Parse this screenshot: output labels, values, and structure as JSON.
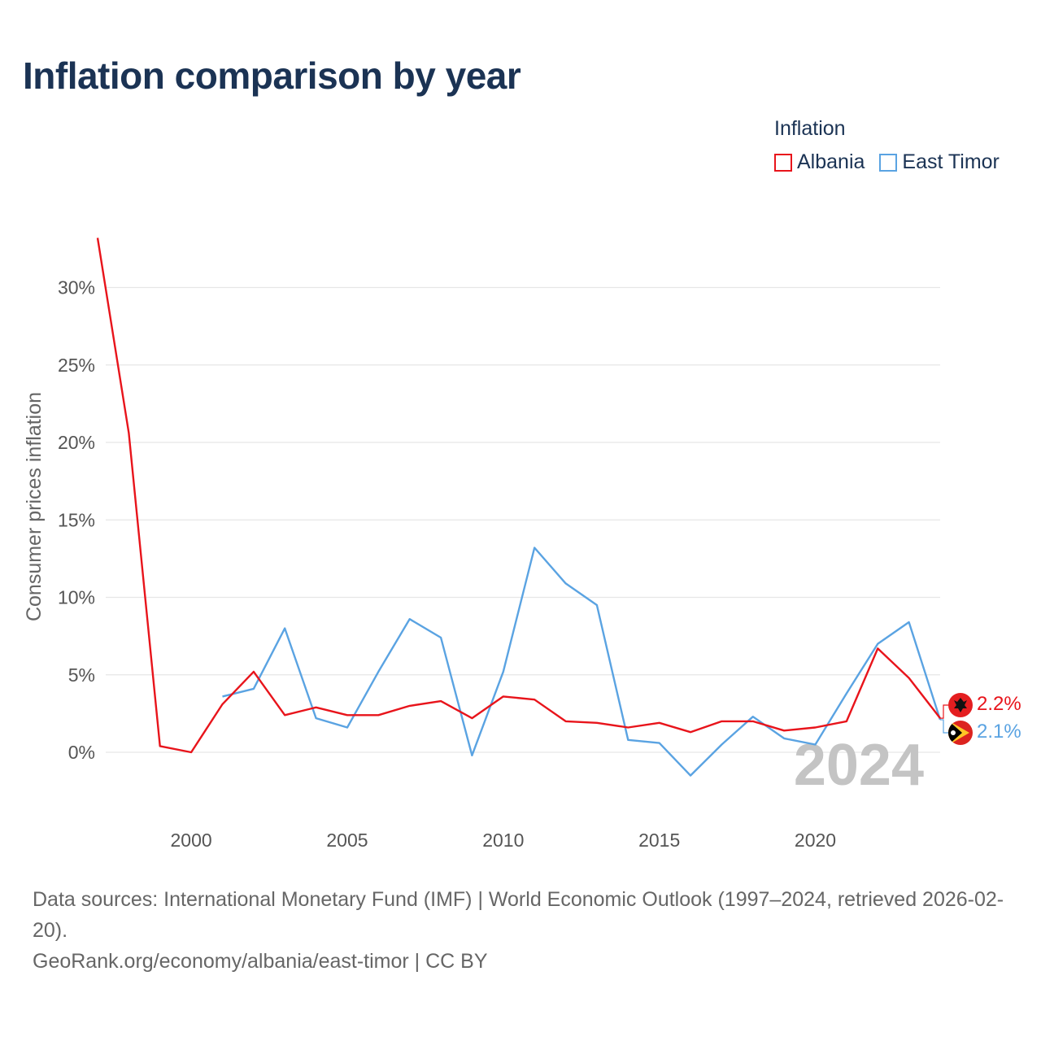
{
  "title": "Inflation comparison by year",
  "legend": {
    "title": "Inflation",
    "items": [
      {
        "label": "Albania",
        "color": "#e8141b"
      },
      {
        "label": "East Timor",
        "color": "#5aa3e2"
      }
    ]
  },
  "chart_data": {
    "type": "line",
    "title": "Inflation comparison by year",
    "xlabel": "",
    "ylabel": "Consumer prices inflation",
    "xlim": [
      1997,
      2024
    ],
    "ylim": [
      -5,
      33
    ],
    "x_ticks": [
      2000,
      2005,
      2010,
      2015,
      2020
    ],
    "y_ticks": [
      0,
      5,
      10,
      15,
      20,
      25,
      30
    ],
    "y_tick_labels": [
      "0%",
      "5%",
      "10%",
      "15%",
      "20%",
      "25%",
      "30%"
    ],
    "year_stamp": "2024",
    "series": [
      {
        "name": "Albania",
        "color": "#e8141b",
        "x": [
          1997,
          1998,
          1999,
          2000,
          2001,
          2002,
          2003,
          2004,
          2005,
          2006,
          2007,
          2008,
          2009,
          2010,
          2011,
          2012,
          2013,
          2014,
          2015,
          2016,
          2017,
          2018,
          2019,
          2020,
          2021,
          2022,
          2023,
          2024
        ],
        "values": [
          33.2,
          20.6,
          0.4,
          0.0,
          3.1,
          5.2,
          2.4,
          2.9,
          2.4,
          2.4,
          3.0,
          3.3,
          2.2,
          3.6,
          3.4,
          2.0,
          1.9,
          1.6,
          1.9,
          1.3,
          2.0,
          2.0,
          1.4,
          1.6,
          2.0,
          6.7,
          4.8,
          2.2
        ],
        "end_label": "2.2%"
      },
      {
        "name": "East Timor",
        "color": "#5aa3e2",
        "x": [
          2001,
          2002,
          2003,
          2004,
          2005,
          2006,
          2007,
          2008,
          2009,
          2010,
          2011,
          2012,
          2013,
          2014,
          2015,
          2016,
          2017,
          2018,
          2019,
          2020,
          2021,
          2022,
          2023,
          2024
        ],
        "values": [
          3.6,
          4.1,
          8.0,
          2.2,
          1.6,
          5.2,
          8.6,
          7.4,
          -0.2,
          5.2,
          13.2,
          10.9,
          9.5,
          0.8,
          0.6,
          -1.5,
          0.5,
          2.3,
          0.9,
          0.5,
          3.8,
          7.0,
          8.4,
          2.1
        ],
        "end_label": "2.1%"
      }
    ]
  },
  "footer": {
    "source_line": "Data sources: International Monetary Fund (IMF) | World Economic Outlook (1997–2024, retrieved 2026-02-20).",
    "credit_line": "GeoRank.org/economy/albania/east-timor | CC BY"
  }
}
